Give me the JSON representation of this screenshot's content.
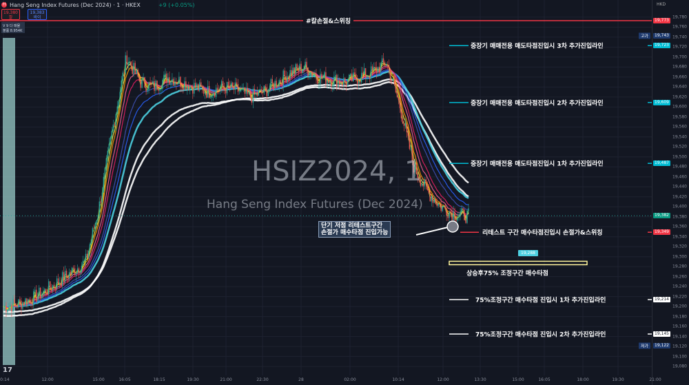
{
  "header": {
    "title": "Hang Seng Index Futures (Dec 2024) · 1 · HKEX",
    "change": "+9 (+0.05%)",
    "sell_price": "19,380",
    "sell_label": "팔",
    "buy_price": "19,383",
    "buy_label": "바이",
    "volume_line1": "V 9  다 매물",
    "volume_line2": "볼륨 8.954K",
    "logo": "TradingView"
  },
  "watermark": {
    "symbol": "HSIZ2024, 1",
    "name": "Hang Seng Index Futures (Dec 2024)"
  },
  "axis": {
    "currency": "HKD",
    "ticks": [
      "19,780",
      "19,760",
      "19,740",
      "19,720",
      "19,700",
      "19,680",
      "19,660",
      "19,640",
      "19,620",
      "19,600",
      "19,580",
      "19,560",
      "19,540",
      "19,520",
      "19,500",
      "19,480",
      "19,460",
      "19,440",
      "19,420",
      "19,400",
      "19,380",
      "19,360",
      "19,340",
      "19,320",
      "19,300",
      "19,280",
      "19,260",
      "19,240",
      "19,220",
      "19,200",
      "19,180",
      "19,160",
      "19,140",
      "19,120",
      "19,100",
      "19,080"
    ],
    "high_label": "고가",
    "high": "19,743",
    "low_label": "저가",
    "low": "19,122",
    "last": "19,382"
  },
  "time_axis": [
    "10:14",
    "12:00",
    "15:00",
    "16:05",
    "18:15",
    "19:30",
    "21:00",
    "22:30",
    "28",
    "02:00",
    "10:14",
    "12:00",
    "13:30",
    "15:00",
    "16:05",
    "18:00",
    "19:30",
    "21:00"
  ],
  "levels": [
    {
      "price": 19773,
      "label": "19,773",
      "text": "#칼손절&스위칭",
      "color": "#f23645"
    },
    {
      "price": 19723,
      "label": "19,723",
      "text": "중장기 매매전용 매도타점진입시 3차 추가진입라인",
      "color": "#00bcd4"
    },
    {
      "price": 19609,
      "label": "19,609",
      "text": "중장기 매매전용 매도타점진입시 2차 추가진입라인",
      "color": "#00bcd4"
    },
    {
      "price": 19487,
      "label": "19,487",
      "text": "중장기 매매전용 매도타점진입시 1차 추가진입라인",
      "color": "#00bcd4"
    },
    {
      "price": 19349,
      "label": "19,349",
      "text": "리테스트 구간 매수타점진입시 손절가&스위칭",
      "color": "#f23645"
    },
    {
      "price": 19214,
      "label": "19,214",
      "text": "75%조정구간 매수타점 진입시 1차 추가진입라인",
      "color": "#ffffff"
    },
    {
      "price": 19145,
      "label": "19,145",
      "text": "75%조정구간 매수타점 진입시 2차 추가진입라인",
      "color": "#ffffff"
    }
  ],
  "zone": {
    "price": 19288,
    "label": "19,288",
    "text": "상승후75% 조정구간 매수타점",
    "color": "#fff59d"
  },
  "callout": {
    "line1": "단기 저점 리테스트구간",
    "line2": "손절가 매수타점 진입가능"
  },
  "chart_data": {
    "type": "candlestick",
    "close_path": [
      19200,
      19205,
      19215,
      19230,
      19250,
      19270,
      19290,
      19400,
      19560,
      19700,
      19650,
      19640,
      19660,
      19650,
      19640,
      19630,
      19640,
      19635,
      19620,
      19630,
      19650,
      19670,
      19680,
      19660,
      19655,
      19650,
      19660,
      19670,
      19690,
      19600,
      19480,
      19430,
      19400,
      19385,
      19382
    ]
  }
}
